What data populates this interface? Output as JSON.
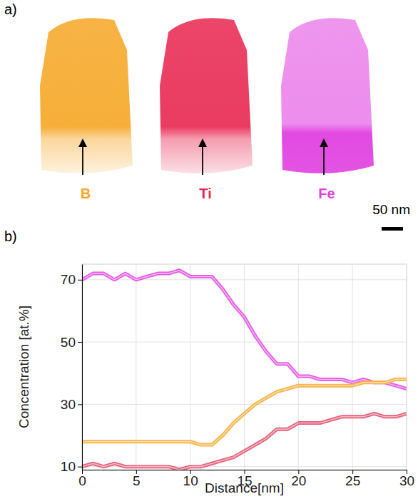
{
  "figure": {
    "panel_labels": [
      "a)",
      "b)"
    ],
    "panel_a": {
      "labels": [
        "B",
        "Ti",
        "Fe"
      ],
      "colors": [
        "#f5a623",
        "#e8254f",
        "#e040e0"
      ],
      "scale_bar": "50 nm"
    }
  },
  "chart_data": {
    "type": "line",
    "x_label": "Distance[nm]",
    "y_label": "Concentration [at.%]",
    "x": [
      0,
      1,
      2,
      3,
      4,
      5,
      6,
      7,
      8,
      9,
      10,
      11,
      12,
      13,
      14,
      15,
      16,
      17,
      18,
      19,
      20,
      21,
      22,
      23,
      24,
      25,
      26,
      27,
      28,
      29,
      30
    ],
    "series": [
      {
        "color": "#e659e6",
        "values": [
          70,
          72,
          72,
          70,
          72,
          70,
          71,
          72,
          72,
          73,
          71,
          71,
          71,
          67,
          62,
          58,
          52,
          47,
          43,
          43,
          39,
          39,
          38,
          38,
          38,
          37,
          38,
          37,
          37,
          36,
          35
        ]
      },
      {
        "color": "#f7b347",
        "values": [
          18,
          18,
          18,
          18,
          18,
          18,
          18,
          18,
          18,
          18,
          18,
          17,
          17,
          20,
          24,
          27,
          30,
          32,
          34,
          35,
          36,
          36,
          36,
          36,
          36,
          36,
          37,
          37,
          37,
          38,
          38
        ]
      },
      {
        "color": "#e8607a",
        "values": [
          10,
          11,
          10,
          11,
          10,
          10,
          10,
          10,
          10,
          9,
          10,
          10,
          11,
          12,
          13,
          15,
          17,
          19,
          22,
          22,
          24,
          24,
          24,
          25,
          26,
          26,
          26,
          27,
          26,
          26,
          27
        ]
      }
    ],
    "xlim": [
      0,
      30
    ],
    "ylim": [
      9,
      75
    ],
    "xticks": [
      0,
      5,
      10,
      15,
      20,
      25,
      30
    ],
    "yticks": [
      10,
      30,
      50,
      70
    ],
    "grid": true
  }
}
